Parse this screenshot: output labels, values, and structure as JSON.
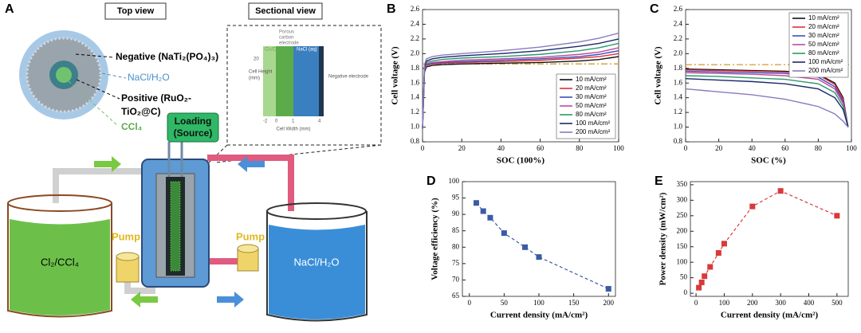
{
  "diagram": {
    "panel": "A",
    "top_view": "Top view",
    "sectional_view": "Sectional view",
    "negative": "Negative (NaTi₂(PO₄)₃)",
    "nacl_ring": "NaCl/H₂O",
    "positive_1": "Positive (RuO₂-",
    "positive_2": "TiO₂@C)",
    "ccl4": "CCl₄",
    "inset": {
      "cl2": "Cl₂/CCl₄",
      "porous": [
        "Porous",
        "carbon",
        "electrode"
      ],
      "nacl": "NaCl (aq)",
      "negative": "Negative electrode",
      "height_label": [
        "Cell Height",
        "(mm)"
      ],
      "height_tick": "20",
      "width_label": "Cell Width (mm)",
      "width_ticks": [
        "-2",
        "0",
        "1",
        "4"
      ]
    },
    "loading": [
      "Loading",
      "(Source)"
    ],
    "pump_left": "Pump",
    "pump_right": "Pump",
    "tank_left": "Cl₂/CCl₄",
    "tank_right": "NaCl/H₂O"
  },
  "chart_data": [
    {
      "type": "line",
      "panel": "B",
      "x_label": "SOC (100%)",
      "y_label": "Cell voltage (V)",
      "x": [
        0,
        1,
        2,
        5,
        10,
        20,
        40,
        60,
        80,
        90,
        100
      ],
      "series": [
        {
          "name": "10 mA/cm²",
          "color": "#111111",
          "values": [
            0.98,
            1.75,
            1.82,
            1.84,
            1.85,
            1.86,
            1.87,
            1.88,
            1.9,
            1.92,
            1.96
          ]
        },
        {
          "name": "20 mA/cm²",
          "color": "#e0303a",
          "values": [
            0.98,
            1.77,
            1.84,
            1.86,
            1.87,
            1.88,
            1.89,
            1.91,
            1.94,
            1.96,
            2.0
          ]
        },
        {
          "name": "30 mA/cm²",
          "color": "#3a4fc0",
          "values": [
            0.98,
            1.78,
            1.85,
            1.87,
            1.88,
            1.89,
            1.91,
            1.93,
            1.96,
            1.99,
            2.04
          ]
        },
        {
          "name": "50 mA/cm²",
          "color": "#c04a9a",
          "values": [
            0.98,
            1.79,
            1.86,
            1.88,
            1.89,
            1.91,
            1.93,
            1.95,
            1.99,
            2.02,
            2.08
          ]
        },
        {
          "name": "80 mA/cm²",
          "color": "#2a9a6a",
          "values": [
            0.98,
            1.8,
            1.88,
            1.9,
            1.92,
            1.94,
            1.96,
            1.99,
            2.04,
            2.08,
            2.14
          ]
        },
        {
          "name": "100 mA/cm²",
          "color": "#1a2a6a",
          "values": [
            0.98,
            1.82,
            1.9,
            1.93,
            1.95,
            1.97,
            2.0,
            2.04,
            2.1,
            2.14,
            2.2
          ]
        },
        {
          "name": "200 mA/cm²",
          "color": "#8a7ac0",
          "values": [
            0.98,
            1.85,
            1.93,
            1.96,
            1.98,
            2.0,
            2.04,
            2.09,
            2.16,
            2.21,
            2.28
          ]
        }
      ],
      "hline": {
        "value": 1.86,
        "color": "#d9a441"
      },
      "xlim": [
        0,
        100
      ],
      "xticks": [
        0,
        20,
        40,
        60,
        80,
        100
      ],
      "ylim": [
        0.8,
        2.6
      ],
      "yticks": [
        0.8,
        {
          "value": 1,
          "label": "1.0"
        },
        1.2,
        1.4,
        1.6,
        1.8,
        {
          "value": 2,
          "label": "2.0"
        },
        2.2,
        2.4,
        2.6
      ],
      "legend": "lower right"
    },
    {
      "type": "line",
      "panel": "C",
      "x_label": "SOC (%)",
      "y_label": "Cell voltage (V)",
      "x": [
        0,
        20,
        40,
        60,
        80,
        90,
        95,
        98
      ],
      "series": [
        {
          "name": "10 mA/cm²",
          "color": "#111111",
          "values": [
            1.79,
            1.78,
            1.77,
            1.76,
            1.72,
            1.6,
            1.4,
            1.0
          ]
        },
        {
          "name": "20 mA/cm²",
          "color": "#e0303a",
          "values": [
            1.78,
            1.77,
            1.76,
            1.75,
            1.71,
            1.58,
            1.38,
            1.0
          ]
        },
        {
          "name": "30 mA/cm²",
          "color": "#3a4fc0",
          "values": [
            1.76,
            1.75,
            1.74,
            1.73,
            1.68,
            1.55,
            1.35,
            1.0
          ]
        },
        {
          "name": "50 mA/cm²",
          "color": "#c04a9a",
          "values": [
            1.74,
            1.73,
            1.72,
            1.7,
            1.65,
            1.52,
            1.32,
            1.0
          ]
        },
        {
          "name": "80 mA/cm²",
          "color": "#2a9a6a",
          "values": [
            1.7,
            1.69,
            1.67,
            1.65,
            1.59,
            1.47,
            1.28,
            1.0
          ]
        },
        {
          "name": "100 mA/cm²",
          "color": "#1a2a6a",
          "values": [
            1.66,
            1.64,
            1.62,
            1.59,
            1.52,
            1.4,
            1.24,
            1.0
          ]
        },
        {
          "name": "200 mA/cm²",
          "color": "#8a7ac0",
          "values": [
            1.52,
            1.48,
            1.44,
            1.38,
            1.28,
            1.18,
            1.08,
            1.0
          ]
        }
      ],
      "hline": {
        "value": 1.85,
        "color": "#d9a441"
      },
      "xlim": [
        0,
        100
      ],
      "xticks": [
        0,
        20,
        40,
        60,
        80,
        100
      ],
      "ylim": [
        0.8,
        2.6
      ],
      "yticks": [
        0.8,
        {
          "value": 1,
          "label": "1.0"
        },
        1.2,
        1.4,
        1.6,
        1.8,
        {
          "value": 2,
          "label": "2.0"
        },
        2.2,
        2.4,
        2.6
      ],
      "legend": "upper right"
    },
    {
      "type": "line",
      "panel": "D",
      "x_label": "Current density (mA/cm²)",
      "y_label": "Voltage efficiency (%)",
      "x": [
        10,
        20,
        30,
        50,
        80,
        100,
        200
      ],
      "values": [
        93.5,
        91,
        89,
        84.3,
        80,
        77,
        67.3
      ],
      "color": "#3b5ba5",
      "markers": true,
      "dashed": true,
      "xlim": [
        -10,
        210
      ],
      "xticks": [
        0,
        50,
        100,
        150,
        200
      ],
      "ylim": [
        65,
        100
      ],
      "yticks": [
        65,
        70,
        75,
        80,
        85,
        90,
        95,
        100
      ]
    },
    {
      "type": "line",
      "panel": "E",
      "x_label": "Current density (mA/cm²)",
      "y_label": "Power density (mW/cm²)",
      "x": [
        10,
        20,
        30,
        50,
        80,
        100,
        200,
        300,
        500
      ],
      "values": [
        18,
        35,
        55,
        85,
        130,
        160,
        280,
        330,
        250
      ],
      "color": "#d83a3a",
      "markers": true,
      "dashed": true,
      "xlim": [
        -20,
        540
      ],
      "xticks": [
        0,
        100,
        200,
        300,
        400,
        500
      ],
      "ylim": [
        -10,
        360
      ],
      "yticks": [
        0,
        50,
        100,
        150,
        200,
        250,
        300,
        350
      ]
    }
  ]
}
